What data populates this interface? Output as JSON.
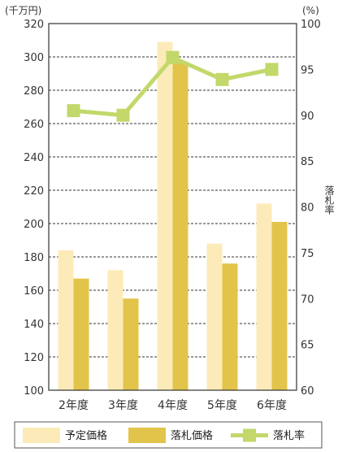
{
  "chart_data": {
    "type": "bar",
    "categories": [
      "2年度",
      "3年度",
      "4年度",
      "5年度",
      "6年度"
    ],
    "series": [
      {
        "name": "予定価格",
        "kind": "bar",
        "axis": "left",
        "color": "#fcebb8",
        "values": [
          184,
          172,
          309,
          188,
          212
        ]
      },
      {
        "name": "落札価格",
        "kind": "bar",
        "axis": "left",
        "color": "#e3c44a",
        "values": [
          167,
          155,
          297,
          176,
          201
        ]
      },
      {
        "name": "落札率",
        "kind": "line",
        "axis": "right",
        "color": "#c2d86a",
        "values": [
          90.5,
          90.0,
          96.3,
          93.9,
          95.0
        ]
      }
    ],
    "left_axis": {
      "unit": "(千万円)",
      "min": 100,
      "max": 320,
      "ticks": [
        100,
        120,
        140,
        160,
        180,
        200,
        220,
        240,
        260,
        280,
        300,
        320
      ]
    },
    "right_axis": {
      "unit": "(%)",
      "label": "落札率",
      "min": 60,
      "max": 100,
      "ticks": [
        60,
        65,
        70,
        75,
        80,
        85,
        90,
        95,
        100
      ]
    },
    "grid": "horizontal-dashed",
    "legend": "bottom"
  }
}
